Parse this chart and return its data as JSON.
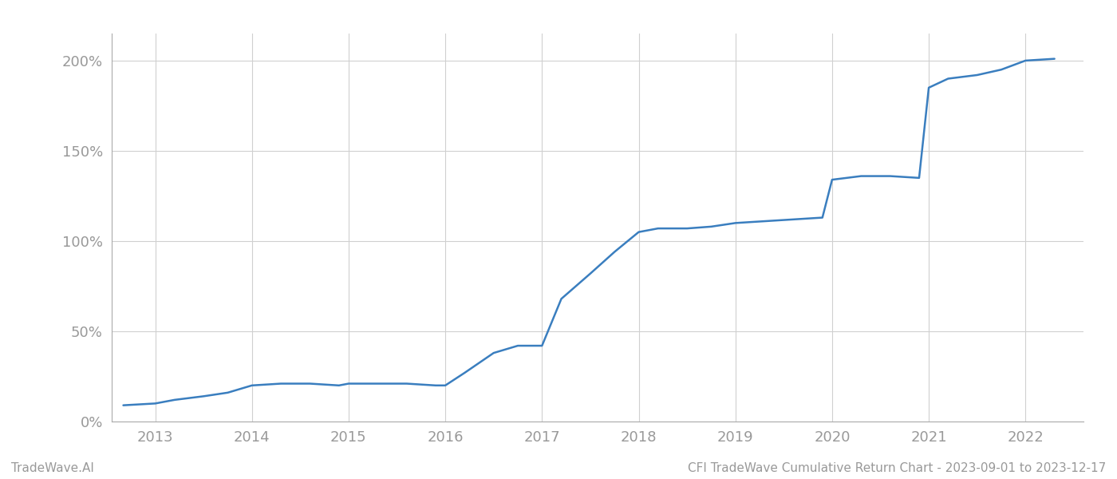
{
  "title_left": "TradeWave.AI",
  "title_right": "CFI TradeWave Cumulative Return Chart - 2023-09-01 to 2023-12-17",
  "line_color": "#3a7ebf",
  "background_color": "#ffffff",
  "grid_color": "#d0d0d0",
  "x_years": [
    2013,
    2014,
    2015,
    2016,
    2017,
    2018,
    2019,
    2020,
    2021,
    2022
  ],
  "x_data": [
    2012.67,
    2013.0,
    2013.2,
    2013.5,
    2013.75,
    2014.0,
    2014.3,
    2014.6,
    2014.9,
    2015.0,
    2015.3,
    2015.6,
    2015.9,
    2016.0,
    2016.2,
    2016.5,
    2016.75,
    2017.0,
    2017.2,
    2017.5,
    2017.75,
    2018.0,
    2018.2,
    2018.5,
    2018.75,
    2019.0,
    2019.3,
    2019.6,
    2019.9,
    2020.0,
    2020.3,
    2020.6,
    2020.9,
    2021.0,
    2021.2,
    2021.5,
    2021.75,
    2022.0,
    2022.3
  ],
  "y_data": [
    9,
    10,
    12,
    14,
    16,
    20,
    21,
    21,
    20,
    21,
    21,
    21,
    20,
    20,
    27,
    38,
    42,
    42,
    68,
    82,
    94,
    105,
    107,
    107,
    108,
    110,
    111,
    112,
    113,
    134,
    136,
    136,
    135,
    185,
    190,
    192,
    195,
    200,
    201
  ],
  "ylim": [
    0,
    215
  ],
  "yticks": [
    0,
    50,
    100,
    150,
    200
  ],
  "ytick_labels": [
    "0%",
    "50%",
    "100%",
    "150%",
    "200%"
  ],
  "xlim": [
    2012.55,
    2022.6
  ],
  "line_width": 1.8,
  "tick_color": "#999999",
  "tick_fontsize": 13,
  "footer_fontsize": 11
}
